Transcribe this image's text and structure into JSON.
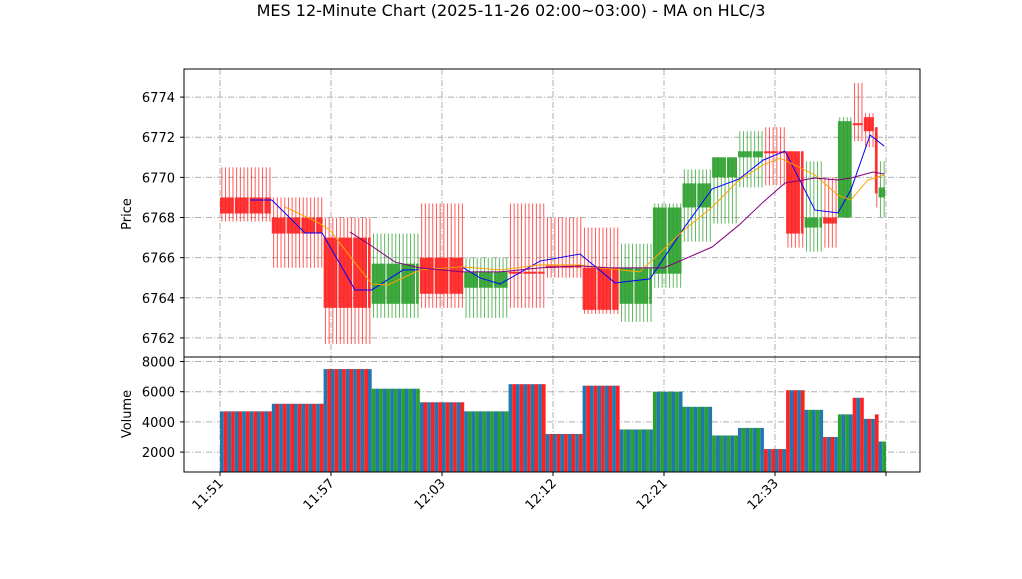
{
  "chart_data": {
    "type": "candlestick",
    "title": "MES 12-Minute Chart (2025-11-26 02:00~03:00) - MA on HLC/3",
    "price_panel": {
      "ylabel": "Price",
      "ylim": [
        6761.05,
        6775.4
      ],
      "yticks": [
        6762,
        6764,
        6766,
        6768,
        6770,
        6772,
        6774
      ],
      "grid": true
    },
    "volume_panel": {
      "ylabel": "Volume",
      "ylim": [
        680,
        8300
      ],
      "yticks": [
        2000,
        4000,
        6000,
        8000
      ],
      "grid": true
    },
    "x_slots": 180,
    "xticks": [
      {
        "slot": 0,
        "label": "11:51"
      },
      {
        "slot": 30,
        "label": "11:57"
      },
      {
        "slot": 60,
        "label": "12:03"
      },
      {
        "slot": 90,
        "label": "12:12"
      },
      {
        "slot": 120,
        "label": "12:21"
      },
      {
        "slot": 150,
        "label": "12:33"
      },
      {
        "slot": 180,
        "label": ""
      }
    ],
    "candles": [
      {
        "start": 0,
        "end": 14,
        "open": 6769.0,
        "high": 6770.5,
        "low": 6767.8,
        "close": 6768.2,
        "volume": 4700
      },
      {
        "start": 14,
        "end": 28,
        "open": 6768.0,
        "high": 6769.0,
        "low": 6765.5,
        "close": 6767.2,
        "volume": 5200
      },
      {
        "start": 28,
        "end": 41,
        "open": 6767.0,
        "high": 6768.0,
        "low": 6761.7,
        "close": 6763.5,
        "volume": 7500
      },
      {
        "start": 41,
        "end": 54,
        "open": 6763.7,
        "high": 6767.2,
        "low": 6763.0,
        "close": 6765.7,
        "volume": 6200
      },
      {
        "start": 54,
        "end": 66,
        "open": 6766.0,
        "high": 6768.7,
        "low": 6763.5,
        "close": 6764.2,
        "volume": 5300
      },
      {
        "start": 66,
        "end": 78,
        "open": 6764.5,
        "high": 6766.0,
        "low": 6763.0,
        "close": 6765.3,
        "volume": 4700
      },
      {
        "start": 78,
        "end": 88,
        "open": 6765.3,
        "high": 6768.7,
        "low": 6763.5,
        "close": 6765.2,
        "volume": 6500
      },
      {
        "start": 88,
        "end": 98,
        "open": 6765.6,
        "high": 6768.0,
        "low": 6765.0,
        "close": 6765.5,
        "volume": 3200
      },
      {
        "start": 98,
        "end": 108,
        "open": 6765.5,
        "high": 6767.5,
        "low": 6763.2,
        "close": 6763.4,
        "volume": 6400
      },
      {
        "start": 108,
        "end": 117,
        "open": 6763.7,
        "high": 6766.7,
        "low": 6762.8,
        "close": 6765.5,
        "volume": 3500
      },
      {
        "start": 117,
        "end": 125,
        "open": 6765.2,
        "high": 6768.7,
        "low": 6764.5,
        "close": 6768.5,
        "volume": 6000
      },
      {
        "start": 125,
        "end": 133,
        "open": 6768.5,
        "high": 6770.4,
        "low": 6766.8,
        "close": 6769.7,
        "volume": 5000
      },
      {
        "start": 133,
        "end": 140,
        "open": 6770.0,
        "high": 6771.0,
        "low": 6767.7,
        "close": 6771.0,
        "volume": 3100
      },
      {
        "start": 140,
        "end": 147,
        "open": 6771.0,
        "high": 6772.3,
        "low": 6769.5,
        "close": 6771.3,
        "volume": 3600
      },
      {
        "start": 147,
        "end": 153,
        "open": 6771.3,
        "high": 6772.5,
        "low": 6769.6,
        "close": 6771.2,
        "volume": 2200
      },
      {
        "start": 153,
        "end": 158,
        "open": 6771.3,
        "high": 6771.3,
        "low": 6766.5,
        "close": 6767.2,
        "volume": 6100
      },
      {
        "start": 158,
        "end": 163,
        "open": 6767.5,
        "high": 6770.8,
        "low": 6766.3,
        "close": 6768.0,
        "volume": 4800
      },
      {
        "start": 163,
        "end": 167,
        "open": 6768.0,
        "high": 6770.0,
        "low": 6766.5,
        "close": 6767.7,
        "volume": 3000
      },
      {
        "start": 167,
        "end": 171,
        "open": 6768.0,
        "high": 6773.0,
        "low": 6768.0,
        "close": 6772.8,
        "volume": 4500
      },
      {
        "start": 171,
        "end": 174,
        "open": 6772.7,
        "high": 6774.7,
        "low": 6771.8,
        "close": 6772.6,
        "volume": 5600
      },
      {
        "start": 174,
        "end": 177,
        "open": 6773.0,
        "high": 6773.2,
        "low": 6771.5,
        "close": 6772.3,
        "volume": 4200
      },
      {
        "start": 177,
        "end": 178,
        "open": 6772.5,
        "high": 6772.5,
        "low": 6768.5,
        "close": 6769.2,
        "volume": 4500
      },
      {
        "start": 178,
        "end": 180,
        "open": 6769.0,
        "high": 6770.8,
        "low": 6768.0,
        "close": 6769.5,
        "volume": 2700
      }
    ],
    "ma_lines": [
      {
        "name": "ma-fast",
        "color": "#0000ff",
        "points": [
          [
            8.1,
            6768.87
          ],
          [
            14,
            6768.87
          ],
          [
            23,
            6767.23
          ],
          [
            27.6,
            6767.23
          ],
          [
            36.5,
            6764.39
          ],
          [
            41,
            6764.39
          ],
          [
            49.5,
            6765.39
          ],
          [
            54,
            6765.39
          ],
          [
            65.4,
            6765.54
          ],
          [
            70.3,
            6764.99
          ],
          [
            75.7,
            6764.69
          ],
          [
            86.5,
            6765.83
          ],
          [
            97.3,
            6766.18
          ],
          [
            106.8,
            6764.74
          ],
          [
            116.2,
            6764.94
          ],
          [
            125.4,
            6767.48
          ],
          [
            133,
            6769.42
          ],
          [
            140.3,
            6769.92
          ],
          [
            146.8,
            6770.86
          ],
          [
            152.7,
            6771.31
          ],
          [
            160.8,
            6768.37
          ],
          [
            167,
            6768.23
          ],
          [
            170.5,
            6769.37
          ],
          [
            175.7,
            6772.11
          ],
          [
            179.5,
            6771.56
          ]
        ]
      },
      {
        "name": "ma-mid",
        "color": "#ffa500",
        "points": [
          [
            17.6,
            6768.52
          ],
          [
            26.2,
            6767.78
          ],
          [
            29.7,
            6767.38
          ],
          [
            36.5,
            6765.74
          ],
          [
            41,
            6764.69
          ],
          [
            45.4,
            6764.64
          ],
          [
            54,
            6765.39
          ],
          [
            65.4,
            6765.54
          ],
          [
            75.7,
            6765.39
          ],
          [
            86.5,
            6765.64
          ],
          [
            97.3,
            6765.64
          ],
          [
            102.7,
            6765.49
          ],
          [
            113.5,
            6765.29
          ],
          [
            125.4,
            6767.38
          ],
          [
            133,
            6768.52
          ],
          [
            140.3,
            6769.87
          ],
          [
            146.8,
            6770.62
          ],
          [
            151.4,
            6770.96
          ],
          [
            160.8,
            6770.12
          ],
          [
            167,
            6769.12
          ],
          [
            170.5,
            6768.87
          ],
          [
            175.1,
            6769.87
          ],
          [
            179.5,
            6770.12
          ]
        ]
      },
      {
        "name": "ma-slow",
        "color": "#800080",
        "points": [
          [
            35.1,
            6767.28
          ],
          [
            41,
            6766.58
          ],
          [
            47.3,
            6765.78
          ],
          [
            54,
            6765.49
          ],
          [
            65.4,
            6765.29
          ],
          [
            75.7,
            6765.29
          ],
          [
            86.5,
            6765.49
          ],
          [
            97.3,
            6765.59
          ],
          [
            105.4,
            6765.49
          ],
          [
            120,
            6765.49
          ],
          [
            133,
            6766.53
          ],
          [
            140.3,
            6767.63
          ],
          [
            146.8,
            6768.77
          ],
          [
            152.7,
            6769.72
          ],
          [
            160.8,
            6769.97
          ],
          [
            167,
            6769.87
          ],
          [
            170.5,
            6769.97
          ],
          [
            176.5,
            6770.27
          ],
          [
            179.5,
            6770.17
          ]
        ]
      }
    ],
    "colors": {
      "up": "#2ca02c",
      "down": "#ff2020",
      "volume_alt": "#1f77b4",
      "grid": "#b0b0b0"
    }
  }
}
